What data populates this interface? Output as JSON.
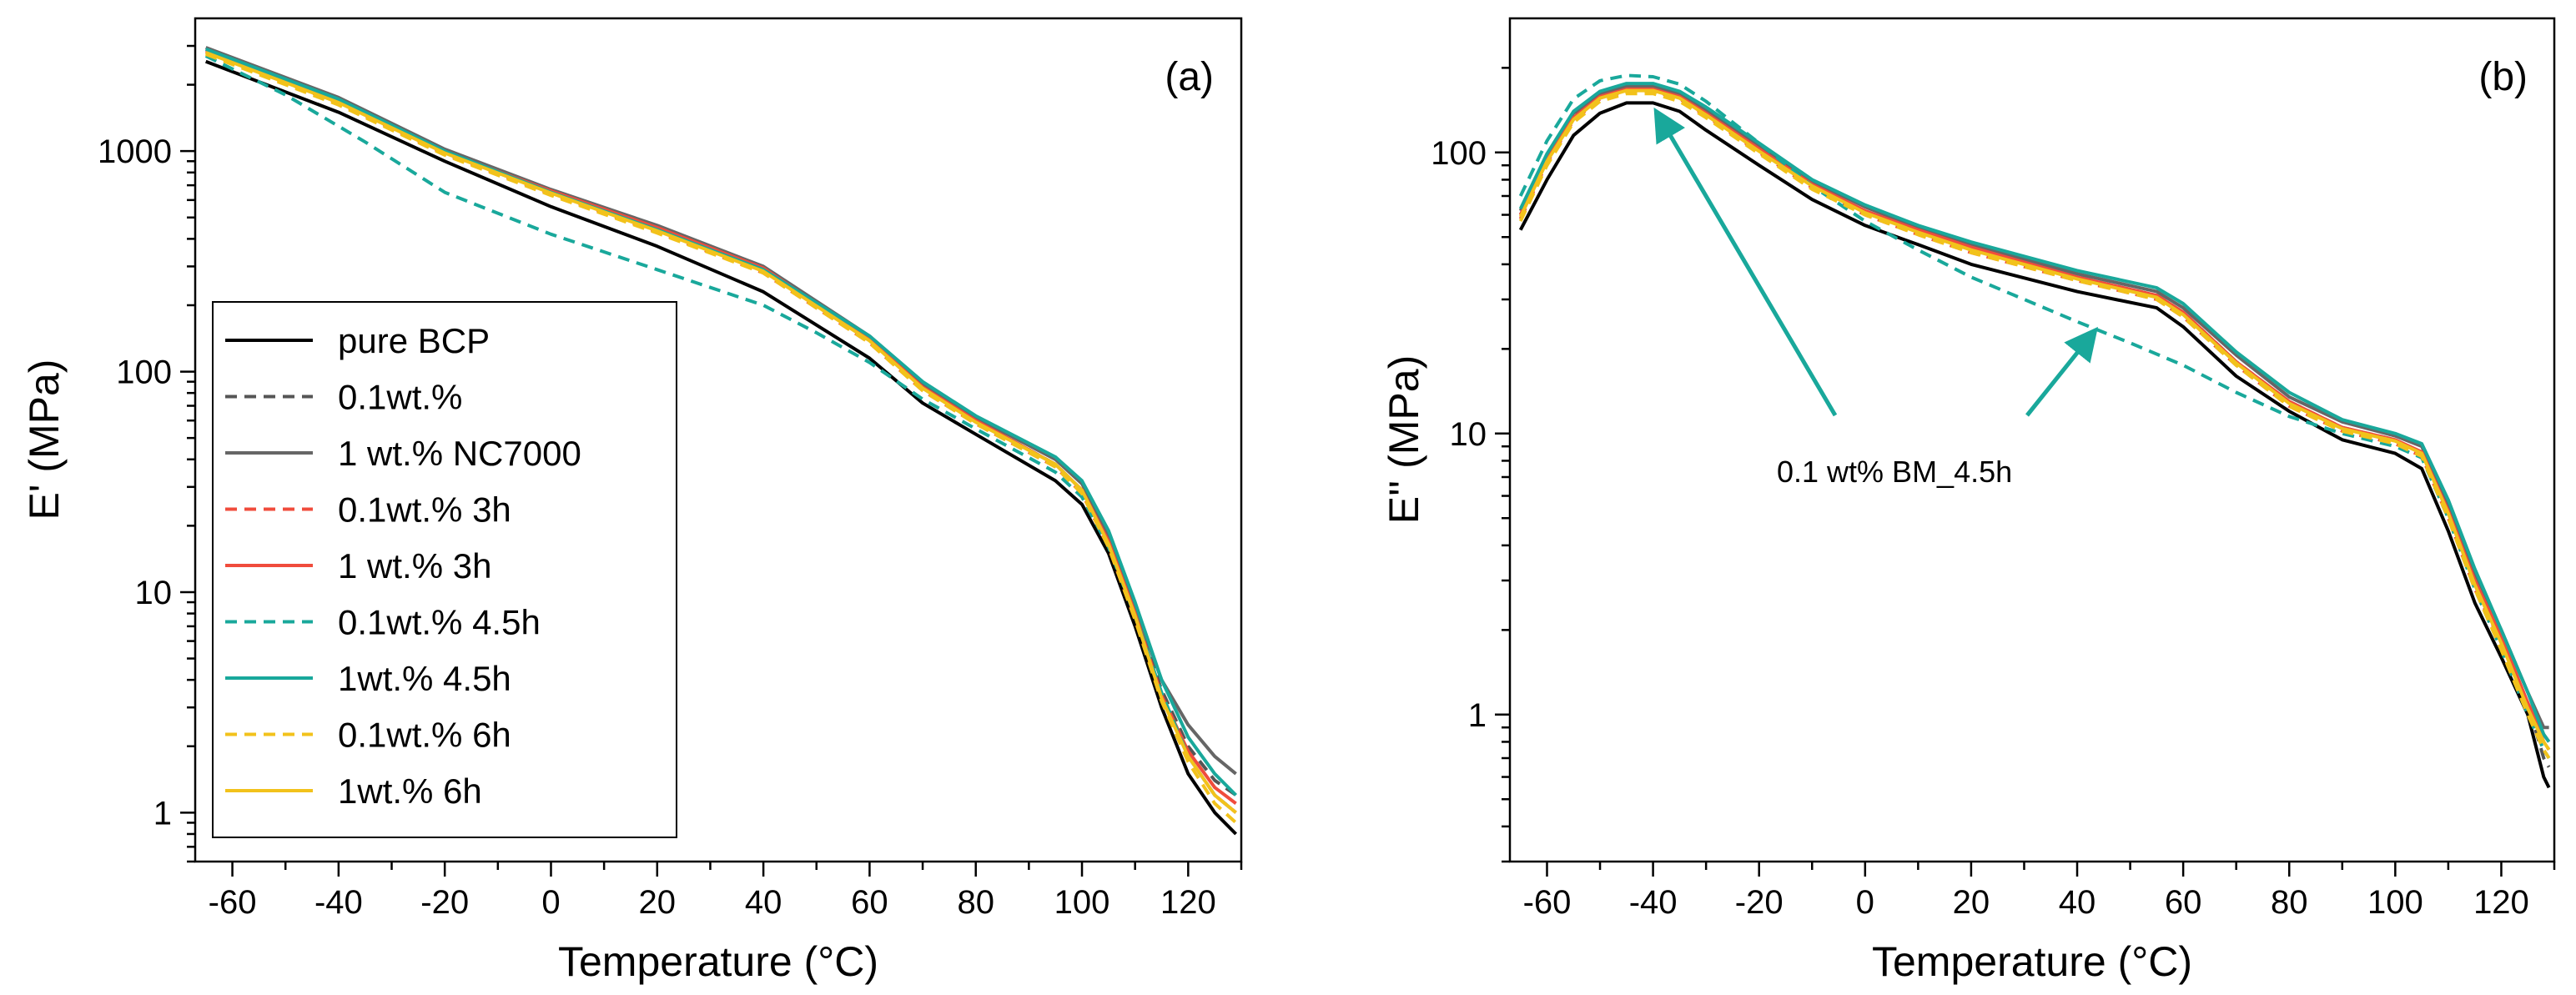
{
  "chart_data": [
    {
      "type": "line",
      "panel_label": "(a)",
      "xlabel": "Temperature (°C)",
      "ylabel": "E' (MPa)",
      "yscale": "log",
      "xlim": [
        -67,
        130
      ],
      "ylim": [
        0.6,
        4000
      ],
      "xticks": [
        -60,
        -40,
        -20,
        0,
        20,
        40,
        60,
        80,
        100,
        120
      ],
      "xtick_labels": [
        "-60",
        "-40",
        "-20",
        "0",
        "20",
        "40",
        "60",
        "80",
        "100",
        "120"
      ],
      "yticks": [
        1,
        10,
        100,
        1000
      ],
      "ytick_labels": [
        "1",
        "10",
        "100",
        "1000"
      ],
      "legend_position": "lower-left",
      "series": [
        {
          "name": "pure BCP",
          "color": "#000000",
          "dash": "solid",
          "x": [
            -65,
            -40,
            -20,
            0,
            20,
            40,
            60,
            70,
            80,
            95,
            100,
            105,
            110,
            115,
            120,
            125,
            129
          ],
          "y": [
            2550,
            1500,
            900,
            560,
            370,
            230,
            115,
            72,
            52,
            32,
            25,
            15,
            7,
            3,
            1.5,
            1.0,
            0.8
          ]
        },
        {
          "name": "0.1wt.%",
          "color": "#555555",
          "dash": "dashed",
          "x": [
            -65,
            -40,
            -20,
            0,
            20,
            40,
            60,
            70,
            80,
            95,
            100,
            105,
            110,
            115,
            120,
            125,
            129
          ],
          "y": [
            2900,
            1700,
            1000,
            650,
            440,
            290,
            140,
            85,
            60,
            38,
            29,
            17,
            8,
            3.6,
            2.0,
            1.4,
            1.2
          ]
        },
        {
          "name": "1 wt.% NC7000",
          "color": "#666666",
          "dash": "solid",
          "x": [
            -65,
            -40,
            -20,
            0,
            20,
            40,
            60,
            70,
            80,
            95,
            100,
            105,
            110,
            115,
            120,
            125,
            129
          ],
          "y": [
            2950,
            1750,
            1020,
            670,
            460,
            300,
            145,
            88,
            62,
            40,
            31,
            18,
            8.5,
            4.0,
            2.5,
            1.8,
            1.5
          ]
        },
        {
          "name": "0.1wt.% 3h",
          "color": "#f04c3c",
          "dash": "dashed",
          "x": [
            -65,
            -40,
            -20,
            0,
            20,
            40,
            60,
            70,
            80,
            95,
            100,
            105,
            110,
            115,
            120,
            125,
            129
          ],
          "y": [
            2800,
            1650,
            970,
            640,
            430,
            280,
            135,
            82,
            58,
            37,
            28,
            16,
            7.5,
            3.3,
            1.8,
            1.2,
            1.0
          ]
        },
        {
          "name": "1 wt.% 3h",
          "color": "#f04c3c",
          "dash": "solid",
          "x": [
            -65,
            -40,
            -20,
            0,
            20,
            40,
            60,
            70,
            80,
            95,
            100,
            105,
            110,
            115,
            120,
            125,
            129
          ],
          "y": [
            2850,
            1680,
            990,
            660,
            450,
            295,
            140,
            85,
            60,
            38,
            29,
            17,
            8,
            3.4,
            1.9,
            1.3,
            1.1
          ]
        },
        {
          "name": "0.1wt.% 4.5h",
          "color": "#19a89b",
          "dash": "dashed",
          "x": [
            -65,
            -50,
            -35,
            -20,
            0,
            20,
            40,
            50,
            60,
            70,
            80,
            95,
            100,
            105,
            110,
            115,
            120,
            125,
            129
          ],
          "y": [
            2700,
            1800,
            1100,
            650,
            420,
            290,
            200,
            150,
            110,
            75,
            55,
            35,
            27,
            16,
            7.8,
            3.5,
            1.8,
            1.2,
            1.0
          ]
        },
        {
          "name": "1wt.% 4.5h",
          "color": "#19a89b",
          "dash": "solid",
          "x": [
            -65,
            -40,
            -20,
            0,
            20,
            40,
            60,
            70,
            80,
            95,
            100,
            105,
            110,
            115,
            120,
            125,
            129
          ],
          "y": [
            2900,
            1720,
            1000,
            650,
            440,
            290,
            145,
            90,
            63,
            41,
            32,
            19,
            9,
            4.0,
            2.2,
            1.5,
            1.2
          ]
        },
        {
          "name": "0.1wt.% 6h",
          "color": "#f2c21b",
          "dash": "dashed",
          "x": [
            -65,
            -40,
            -20,
            0,
            20,
            40,
            60,
            70,
            80,
            95,
            100,
            105,
            110,
            115,
            120,
            125,
            129
          ],
          "y": [
            2750,
            1620,
            960,
            630,
            425,
            280,
            135,
            82,
            58,
            37,
            28,
            16,
            7.5,
            3.2,
            1.7,
            1.1,
            0.9
          ]
        },
        {
          "name": "1wt.% 6h",
          "color": "#f2c21b",
          "dash": "solid",
          "x": [
            -65,
            -40,
            -20,
            0,
            20,
            40,
            60,
            70,
            80,
            95,
            100,
            105,
            110,
            115,
            120,
            125,
            129
          ],
          "y": [
            2800,
            1660,
            980,
            645,
            435,
            285,
            138,
            84,
            59,
            38,
            29,
            16.5,
            7.8,
            3.3,
            1.8,
            1.2,
            1.0
          ]
        }
      ]
    },
    {
      "type": "line",
      "panel_label": "(b)",
      "xlabel": "Temperature (°C)",
      "ylabel": "E'' (MPa)",
      "yscale": "log",
      "xlim": [
        -67,
        130
      ],
      "ylim": [
        0.3,
        300
      ],
      "xticks": [
        -60,
        -40,
        -20,
        0,
        20,
        40,
        60,
        80,
        100,
        120
      ],
      "xtick_labels": [
        "-60",
        "-40",
        "-20",
        "0",
        "20",
        "40",
        "60",
        "80",
        "100",
        "120"
      ],
      "yticks": [
        1,
        10,
        100
      ],
      "ytick_labels": [
        "1",
        "10",
        "100"
      ],
      "annotation": {
        "text": "0.1 wt% BM_4.5h",
        "arrow_targets": [
          [
            -40,
            150
          ],
          [
            42,
            25
          ]
        ]
      },
      "series": [
        {
          "name": "pure BCP",
          "color": "#000000",
          "dash": "solid",
          "x": [
            -65,
            -60,
            -55,
            -50,
            -45,
            -40,
            -35,
            -30,
            -20,
            -10,
            0,
            10,
            20,
            40,
            55,
            60,
            70,
            80,
            90,
            100,
            105,
            110,
            115,
            120,
            125,
            128,
            129
          ],
          "y": [
            53,
            80,
            115,
            138,
            150,
            150,
            140,
            120,
            90,
            68,
            55,
            47,
            40,
            32,
            28,
            24,
            16,
            12,
            9.5,
            8.5,
            7.5,
            4.5,
            2.5,
            1.6,
            1.0,
            0.6,
            0.55
          ]
        },
        {
          "name": "0.1wt.%",
          "color": "#555555",
          "dash": "dashed",
          "x": [
            -65,
            -60,
            -55,
            -50,
            -45,
            -40,
            -35,
            -30,
            -20,
            -10,
            0,
            10,
            20,
            40,
            55,
            60,
            70,
            80,
            90,
            100,
            105,
            110,
            115,
            120,
            125,
            128,
            129
          ],
          "y": [
            60,
            95,
            135,
            158,
            168,
            168,
            158,
            138,
            102,
            76,
            61,
            52,
            45,
            36,
            31,
            27,
            18,
            13,
            10.5,
            9.5,
            8.5,
            5.2,
            2.9,
            1.8,
            1.1,
            0.7,
            0.65
          ]
        },
        {
          "name": "1 wt.% NC7000",
          "color": "#666666",
          "dash": "solid",
          "x": [
            -65,
            -60,
            -55,
            -50,
            -45,
            -40,
            -35,
            -30,
            -20,
            -10,
            0,
            10,
            20,
            40,
            55,
            60,
            70,
            80,
            90,
            100,
            105,
            110,
            115,
            120,
            125,
            128,
            129
          ],
          "y": [
            62,
            97,
            138,
            162,
            172,
            172,
            162,
            142,
            106,
            79,
            64,
            54,
            47,
            37,
            32,
            28,
            19,
            13.5,
            11,
            9.8,
            9.0,
            5.6,
            3.2,
            2.0,
            1.2,
            0.9,
            0.9
          ]
        },
        {
          "name": "0.1wt.% 3h",
          "color": "#f04c3c",
          "dash": "dashed",
          "x": [
            -65,
            -60,
            -55,
            -50,
            -45,
            -40,
            -35,
            -30,
            -20,
            -10,
            0,
            10,
            20,
            40,
            55,
            60,
            70,
            80,
            90,
            100,
            105,
            110,
            115,
            120,
            125,
            128,
            129
          ],
          "y": [
            58,
            92,
            130,
            155,
            165,
            165,
            155,
            135,
            100,
            75,
            60,
            51,
            44,
            35,
            30,
            26,
            17.5,
            12.5,
            10.2,
            9.2,
            8.3,
            5.0,
            2.8,
            1.8,
            1.1,
            0.8,
            0.75
          ]
        },
        {
          "name": "1 wt.% 3h",
          "color": "#f04c3c",
          "dash": "solid",
          "x": [
            -65,
            -60,
            -55,
            -50,
            -45,
            -40,
            -35,
            -30,
            -20,
            -10,
            0,
            10,
            20,
            40,
            55,
            60,
            70,
            80,
            90,
            100,
            105,
            110,
            115,
            120,
            125,
            128,
            129
          ],
          "y": [
            60,
            94,
            133,
            158,
            168,
            168,
            158,
            138,
            103,
            77,
            62,
            53,
            46,
            36,
            31,
            27,
            18,
            13,
            10.5,
            9.5,
            8.6,
            5.3,
            3.0,
            1.9,
            1.1,
            0.85,
            0.8
          ]
        },
        {
          "name": "0.1wt.% 4.5h",
          "color": "#19a89b",
          "dash": "dashed",
          "x": [
            -65,
            -60,
            -55,
            -50,
            -45,
            -40,
            -35,
            -30,
            -20,
            -10,
            0,
            10,
            20,
            30,
            40,
            50,
            60,
            70,
            80,
            90,
            100,
            105,
            110,
            115,
            120,
            125,
            128,
            129
          ],
          "y": [
            70,
            110,
            155,
            180,
            188,
            186,
            175,
            152,
            108,
            76,
            57,
            45,
            36,
            30,
            25,
            21,
            17.5,
            14,
            11.5,
            10,
            9.0,
            8.2,
            5.0,
            2.8,
            1.7,
            1.0,
            0.75,
            0.7
          ]
        },
        {
          "name": "1wt.% 4.5h",
          "color": "#19a89b",
          "dash": "solid",
          "x": [
            -65,
            -60,
            -55,
            -50,
            -45,
            -40,
            -35,
            -30,
            -20,
            -10,
            0,
            10,
            20,
            40,
            55,
            60,
            70,
            80,
            90,
            100,
            105,
            110,
            115,
            120,
            125,
            128,
            129
          ],
          "y": [
            63,
            99,
            140,
            165,
            176,
            176,
            165,
            145,
            108,
            80,
            65,
            55,
            48,
            38,
            33,
            29,
            19.5,
            14,
            11.2,
            10,
            9.2,
            5.8,
            3.3,
            2.0,
            1.2,
            0.85,
            0.8
          ]
        },
        {
          "name": "0.1wt.% 6h",
          "color": "#f2c21b",
          "dash": "dashed",
          "x": [
            -65,
            -60,
            -55,
            -50,
            -45,
            -40,
            -35,
            -30,
            -20,
            -10,
            0,
            10,
            20,
            40,
            55,
            60,
            70,
            80,
            90,
            100,
            105,
            110,
            115,
            120,
            125,
            128,
            129
          ],
          "y": [
            57,
            90,
            128,
            152,
            162,
            162,
            152,
            133,
            99,
            74,
            60,
            51,
            44,
            35,
            30,
            26,
            17.5,
            12.5,
            10.2,
            9.2,
            8.3,
            5.0,
            2.8,
            1.7,
            1.0,
            0.75,
            0.7
          ]
        },
        {
          "name": "1wt.% 6h",
          "color": "#f2c21b",
          "dash": "solid",
          "x": [
            -65,
            -60,
            -55,
            -50,
            -45,
            -40,
            -35,
            -30,
            -20,
            -10,
            0,
            10,
            20,
            40,
            55,
            60,
            70,
            80,
            90,
            100,
            105,
            110,
            115,
            120,
            125,
            128,
            129
          ],
          "y": [
            59,
            93,
            131,
            156,
            166,
            166,
            156,
            136,
            101,
            76,
            61,
            52,
            45,
            35.5,
            30.5,
            26.5,
            17.8,
            12.8,
            10.4,
            9.4,
            8.5,
            5.2,
            2.9,
            1.8,
            1.05,
            0.8,
            0.75
          ]
        }
      ]
    }
  ]
}
